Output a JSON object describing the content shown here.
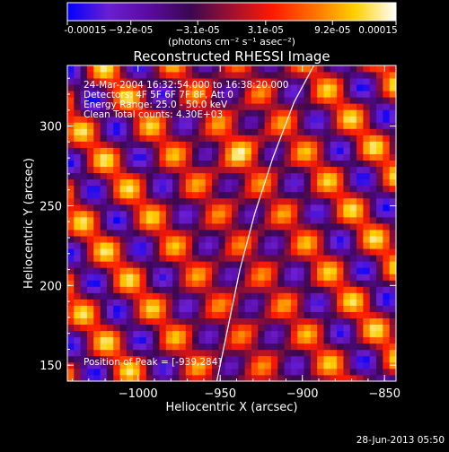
{
  "chart_data": {
    "type": "heatmap",
    "title": "Reconstructed RHESSI Image",
    "xlabel": "Heliocentric X (arcsec)",
    "ylabel": "Heliocentric Y (arcsec)",
    "xlim": [
      -1043,
      -843
    ],
    "ylim": [
      140,
      338
    ],
    "xticks": [
      -1000,
      -950,
      -900,
      -850
    ],
    "xtick_labels": [
      "−1000",
      "−950",
      "−900",
      "−850"
    ],
    "yticks": [
      150,
      200,
      250,
      300
    ],
    "ytick_labels": [
      "150",
      "200",
      "250",
      "300"
    ],
    "colorbar": {
      "min": -0.00015,
      "max": 0.00015,
      "ticks": [
        -0.00015,
        -9.2e-05,
        -3.1e-05,
        3.1e-05,
        9.2e-05,
        0.00015
      ],
      "tick_labels": [
        "-0.00015",
        "−9.2e-05",
        "−3.1e-05",
        "3.1e-05",
        "9.2e-05",
        "0.00015"
      ],
      "unit_label": "(photons cm⁻² s⁻¹ asec⁻²)",
      "colormap": [
        "#0000ff",
        "#6a1fd0",
        "#5a0aa0",
        "#3a0850",
        "#a01030",
        "#ff1a00",
        "#ff7000",
        "#ffd000",
        "#ffffff"
      ]
    },
    "peak_position": [
      -939,
      284
    ],
    "limb_curve": {
      "x": [
        -952,
        -945,
        -938,
        -929,
        -918,
        -905,
        -893
      ],
      "y": [
        140,
        175,
        210,
        245,
        280,
        315,
        338
      ]
    }
  },
  "annotations": {
    "time_range": "24-Mar-2004 16:32:54.000 to 16:38:20.000",
    "detectors": "Detectors: 4F 5F 6F 7F 8F, Att 0",
    "energy": "Energy Range: 25.0 - 50.0 keV",
    "clean": "Clean     Total counts: 4.30E+03",
    "peak": "Position of Peak = [-939,284]"
  },
  "footer": {
    "timestamp": "28-Jun-2013 05:50"
  }
}
